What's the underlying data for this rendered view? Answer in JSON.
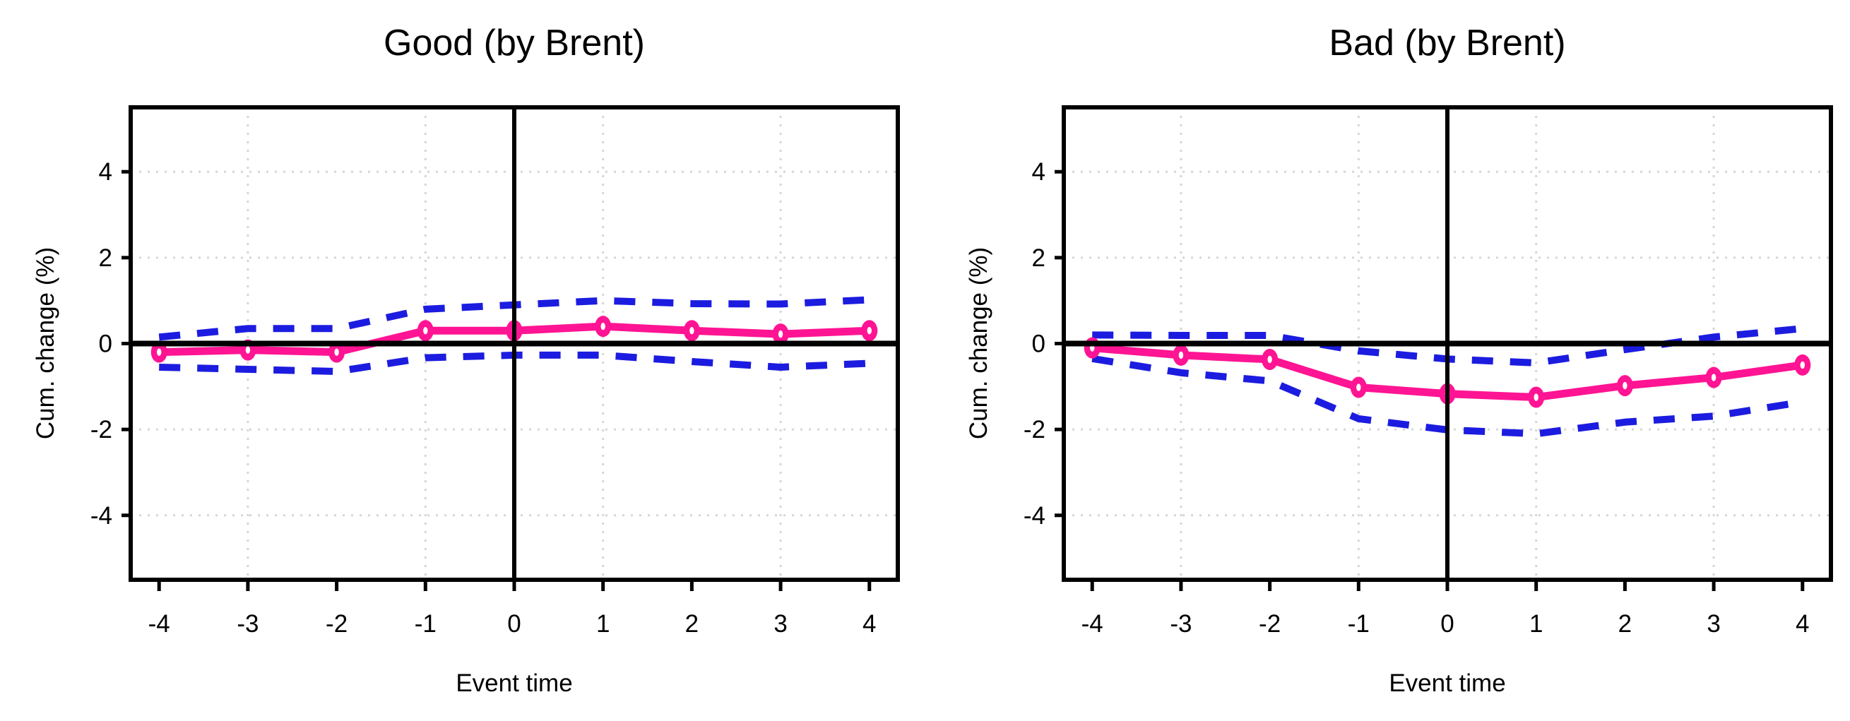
{
  "figure": {
    "background": "#ffffff"
  },
  "colors": {
    "estimate_line": "#ff1493",
    "marker_fill": "#ff1493",
    "marker_hole": "#ffffff",
    "ci_dashed_line": "#1c1ce0",
    "axis_and_frame": "#000000",
    "grid_dotted": "#d6d6d6"
  },
  "chart_data": [
    {
      "type": "line",
      "title": "Good (by Brent)",
      "xlabel": "Event time",
      "ylabel": "Cum. change (%)",
      "x": [
        -4,
        -3,
        -2,
        -1,
        0,
        1,
        2,
        3,
        4
      ],
      "series": [
        {
          "name": "estimate",
          "style": "solid-with-open-circle-markers",
          "color": "#ff1493",
          "values": [
            -0.2,
            -0.15,
            -0.2,
            0.3,
            0.3,
            0.4,
            0.3,
            0.22,
            0.3
          ]
        },
        {
          "name": "ci-upper",
          "style": "dashed",
          "color": "#1c1ce0",
          "values": [
            0.15,
            0.35,
            0.35,
            0.8,
            0.9,
            1.0,
            0.93,
            0.92,
            1.02
          ]
        },
        {
          "name": "ci-lower",
          "style": "dashed",
          "color": "#1c1ce0",
          "values": [
            -0.55,
            -0.6,
            -0.65,
            -0.33,
            -0.27,
            -0.27,
            -0.42,
            -0.55,
            -0.46
          ]
        }
      ],
      "xlim": [
        -4.32,
        4.32
      ],
      "ylim": [
        -5.5,
        5.5
      ],
      "xticks": [
        -4,
        -3,
        -2,
        -1,
        0,
        1,
        2,
        3,
        4
      ],
      "yticks": [
        -4,
        -2,
        0,
        2,
        4
      ],
      "grid": {
        "style": "dotted",
        "vertical_at": [
          -3,
          -1,
          1,
          3
        ],
        "horizontal_at": [
          -4,
          -2,
          2,
          4
        ]
      },
      "reference_lines": {
        "horizontal": 0,
        "vertical": 0
      },
      "legend": "none"
    },
    {
      "type": "line",
      "title": "Bad (by Brent)",
      "xlabel": "Event time",
      "ylabel": "Cum. change (%)",
      "x": [
        -4,
        -3,
        -2,
        -1,
        0,
        1,
        2,
        3,
        4
      ],
      "series": [
        {
          "name": "estimate",
          "style": "solid-with-open-circle-markers",
          "color": "#ff1493",
          "values": [
            -0.1,
            -0.27,
            -0.37,
            -1.02,
            -1.17,
            -1.25,
            -0.98,
            -0.79,
            -0.5
          ]
        },
        {
          "name": "ci-upper",
          "style": "dashed",
          "color": "#1c1ce0",
          "values": [
            0.2,
            0.19,
            0.19,
            -0.17,
            -0.36,
            -0.45,
            -0.14,
            0.15,
            0.35
          ]
        },
        {
          "name": "ci-lower",
          "style": "dashed",
          "color": "#1c1ce0",
          "values": [
            -0.35,
            -0.68,
            -0.87,
            -1.75,
            -2.01,
            -2.1,
            -1.83,
            -1.69,
            -1.36
          ]
        }
      ],
      "xlim": [
        -4.32,
        4.32
      ],
      "ylim": [
        -5.5,
        5.5
      ],
      "xticks": [
        -4,
        -3,
        -2,
        -1,
        0,
        1,
        2,
        3,
        4
      ],
      "yticks": [
        -4,
        -2,
        0,
        2,
        4
      ],
      "grid": {
        "style": "dotted",
        "vertical_at": [
          -3,
          -1,
          1,
          3
        ],
        "horizontal_at": [
          -4,
          -2,
          2,
          4
        ]
      },
      "reference_lines": {
        "horizontal": 0,
        "vertical": 0
      },
      "legend": "none"
    }
  ]
}
